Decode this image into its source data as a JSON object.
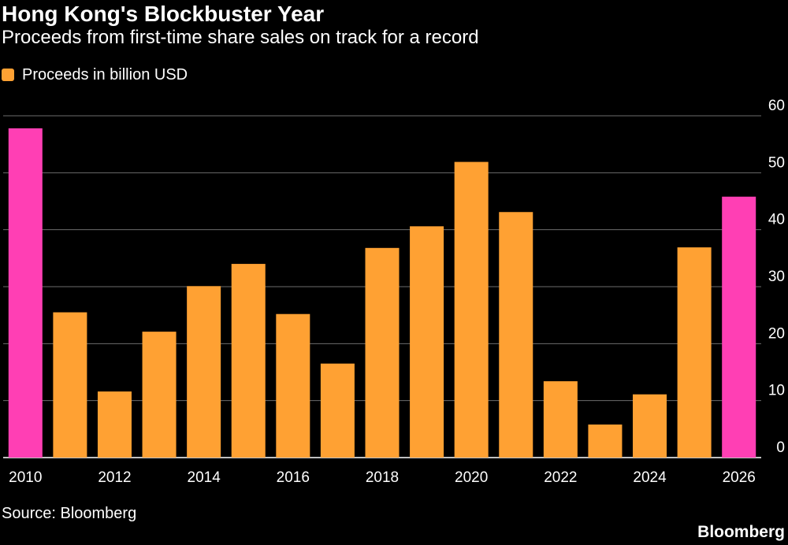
{
  "header": {
    "title": "Hong Kong's Blockbuster Year",
    "subtitle": "Proceeds from first-time share sales on track for a record"
  },
  "legend": {
    "label": "Proceeds in billion USD",
    "color": "#ffa133"
  },
  "footer": {
    "source": "Source: Bloomberg",
    "brand": "Bloomberg"
  },
  "colors": {
    "background": "#000000",
    "bar": "#ffa133",
    "highlight": "#ff3fb4",
    "grid": "#6b6b6b",
    "text": "#ffffff"
  },
  "chart_data": {
    "type": "bar",
    "categories": [
      "2010",
      "2011",
      "2012",
      "2013",
      "2014",
      "2015",
      "2016",
      "2017",
      "2018",
      "2019",
      "2020",
      "2021",
      "2022",
      "2023",
      "2024",
      "2025",
      "2026"
    ],
    "x_tick_labels": [
      "2010",
      "",
      "2012",
      "",
      "2014",
      "",
      "2016",
      "",
      "2018",
      "",
      "2020",
      "",
      "2022",
      "",
      "2024",
      "",
      "2026"
    ],
    "series": [
      {
        "name": "Proceeds in billion USD",
        "values": [
          57.8,
          25.5,
          11.6,
          22.1,
          30.1,
          34.0,
          25.2,
          16.5,
          36.8,
          40.6,
          51.9,
          43.1,
          13.4,
          5.8,
          11.1,
          36.9,
          45.8
        ]
      }
    ],
    "highlight_categories": [
      "2010",
      "2026"
    ],
    "ylim": [
      0,
      60
    ],
    "y_ticks": [
      0,
      10,
      20,
      30,
      40,
      50,
      60
    ],
    "y_axis_side": "right",
    "grid": true
  }
}
